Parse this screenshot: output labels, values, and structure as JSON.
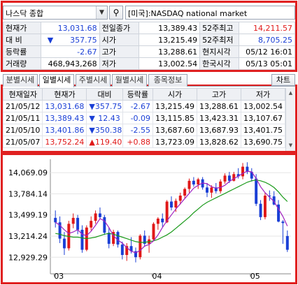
{
  "search": {
    "combo_value": "나스닥 종합",
    "market_label": "[미국]:NASDAQ national market"
  },
  "quote": {
    "current_label": "현재가",
    "current_value": "13,031.68",
    "prev_close_label": "전일종가",
    "prev_close_value": "13,389.43",
    "high52_label": "52주최고",
    "high52_value": "14,211.57",
    "change_label": "대 비",
    "change_value": "357.75",
    "open_label": "시가",
    "open_value": "13,215.49",
    "low52_label": "52주최저",
    "low52_value": "8,705.25",
    "rate_label": "등락률",
    "rate_value": "-2.67",
    "high_label": "고가",
    "high_value": "13,288.61",
    "local_time_label": "현지시각",
    "local_time_value": "05/12 16:01",
    "volume_label": "거래량",
    "volume_value": "468,943,268",
    "low_label": "저가",
    "low_value": "13,002.54",
    "kr_time_label": "한국시각",
    "kr_time_value": "05/13 05:01"
  },
  "tabs": [
    "분별시세",
    "일별시세",
    "주별시세",
    "월별시세",
    "종목정보"
  ],
  "chart_button": "차트",
  "daily": {
    "headers": [
      "현재일자",
      "현재가",
      "대비",
      "등락률",
      "시가",
      "고가",
      "저가"
    ],
    "rows": [
      {
        "date": "21/05/12",
        "price": "13,031.68",
        "dir": "down",
        "change": "357.75",
        "rate": "-2.67",
        "open": "13,215.49",
        "high": "13,288.61",
        "low": "13,002.54"
      },
      {
        "date": "21/05/11",
        "price": "13,389.43",
        "dir": "down",
        "change": "12.43",
        "rate": "-0.09",
        "open": "13,115.85",
        "high": "13,423.31",
        "low": "13,107.67"
      },
      {
        "date": "21/05/10",
        "price": "13,401.86",
        "dir": "down",
        "change": "350.38",
        "rate": "-2.55",
        "open": "13,687.60",
        "high": "13,687.93",
        "low": "13,401.75"
      },
      {
        "date": "21/05/07",
        "price": "13,752.24",
        "dir": "up",
        "change": "119.40",
        "rate": "+0.88",
        "open": "13,723.09",
        "high": "13,828.62",
        "low": "13,690.75"
      }
    ]
  },
  "chart_data": {
    "type": "candlestick",
    "y_ticks": [
      "14,069.09",
      "13,784.14",
      "13,499.19",
      "13,214.24",
      "12,929.29"
    ],
    "x_ticks": [
      "03",
      "04",
      "05"
    ],
    "ylim": [
      12800,
      14250
    ],
    "colors": {
      "up": "#e01818",
      "down": "#1a3fd6",
      "ma_short": "#a020c0",
      "ma_long": "#1a9a1a"
    },
    "candles": [
      [
        13460,
        13560,
        13330,
        13400
      ],
      [
        13400,
        13480,
        13120,
        13180
      ],
      [
        13180,
        13270,
        12960,
        13050
      ],
      [
        13050,
        13420,
        13020,
        13380
      ],
      [
        13380,
        13520,
        13320,
        13460
      ],
      [
        13460,
        13500,
        13240,
        13300
      ],
      [
        13300,
        13360,
        12990,
        13030
      ],
      [
        13030,
        13360,
        13010,
        13330
      ],
      [
        13330,
        13480,
        13290,
        13420
      ],
      [
        13420,
        13560,
        13380,
        13520
      ],
      [
        13520,
        13600,
        13440,
        13470
      ],
      [
        13470,
        13500,
        13230,
        13260
      ],
      [
        13260,
        13330,
        13050,
        13110
      ],
      [
        13110,
        13300,
        13080,
        13270
      ],
      [
        13270,
        13290,
        13060,
        13100
      ],
      [
        13100,
        13140,
        12900,
        12960
      ],
      [
        12960,
        13120,
        12880,
        13080
      ],
      [
        13080,
        13200,
        12980,
        13010
      ],
      [
        13010,
        13060,
        12860,
        12930
      ],
      [
        12930,
        13240,
        12900,
        13220
      ],
      [
        13220,
        13290,
        13070,
        13110
      ],
      [
        13110,
        13220,
        12990,
        13170
      ],
      [
        13170,
        13400,
        13150,
        13380
      ],
      [
        13380,
        13470,
        13300,
        13450
      ],
      [
        13450,
        13520,
        13340,
        13400
      ],
      [
        13400,
        13700,
        13390,
        13680
      ],
      [
        13680,
        13750,
        13560,
        13600
      ],
      [
        13600,
        13720,
        13540,
        13690
      ],
      [
        13690,
        13800,
        13640,
        13760
      ],
      [
        13760,
        13870,
        13720,
        13850
      ],
      [
        13850,
        13990,
        13800,
        13960
      ],
      [
        13960,
        14010,
        13880,
        13910
      ],
      [
        13910,
        14000,
        13850,
        13980
      ],
      [
        13980,
        14010,
        13840,
        13870
      ],
      [
        13870,
        13930,
        13740,
        13800
      ],
      [
        13800,
        13900,
        13730,
        13870
      ],
      [
        13870,
        13930,
        13790,
        13820
      ],
      [
        13820,
        13980,
        13790,
        13950
      ],
      [
        13950,
        14060,
        13920,
        14030
      ],
      [
        14030,
        14080,
        13930,
        13960
      ],
      [
        13960,
        14080,
        13950,
        14050
      ],
      [
        14050,
        14130,
        13990,
        14020
      ],
      [
        14020,
        14200,
        13980,
        14150
      ],
      [
        14150,
        14210,
        14050,
        14080
      ],
      [
        14080,
        14130,
        13950,
        13990
      ],
      [
        13990,
        14050,
        13620,
        13650
      ],
      [
        13650,
        13700,
        13430,
        13470
      ],
      [
        13470,
        13800,
        13440,
        13760
      ],
      [
        13760,
        13830,
        13690,
        13750
      ],
      [
        13750,
        13820,
        13630,
        13640
      ],
      [
        13640,
        13700,
        13400,
        13410
      ],
      [
        13410,
        13430,
        13110,
        13390
      ],
      [
        13215,
        13290,
        13000,
        13030
      ]
    ],
    "ma_short": [
      13400,
      13360,
      13300,
      13250,
      13270,
      13300,
      13240,
      13220,
      13280,
      13360,
      13450,
      13420,
      13330,
      13220,
      13160,
      13120,
      13060,
      13010,
      12990,
      13020,
      13080,
      13100,
      13150,
      13230,
      13330,
      13420,
      13500,
      13580,
      13650,
      13720,
      13790,
      13860,
      13900,
      13930,
      13920,
      13880,
      13860,
      13870,
      13900,
      13950,
      13990,
      14020,
      14060,
      14090,
      14080,
      13990,
      13880,
      13800,
      13740,
      13680,
      13580,
      13480,
      13350
    ],
    "ma_long": [
      13250,
      13240,
      13220,
      13210,
      13200,
      13200,
      13190,
      13180,
      13190,
      13200,
      13220,
      13240,
      13250,
      13240,
      13220,
      13200,
      13180,
      13160,
      13140,
      13130,
      13130,
      13140,
      13150,
      13170,
      13200,
      13230,
      13270,
      13320,
      13370,
      13420,
      13470,
      13530,
      13580,
      13630,
      13670,
      13700,
      13730,
      13760,
      13790,
      13820,
      13850,
      13880,
      13910,
      13940,
      13960,
      13970,
      13960,
      13940,
      13910,
      13870,
      13810,
      13740,
      13680
    ]
  }
}
